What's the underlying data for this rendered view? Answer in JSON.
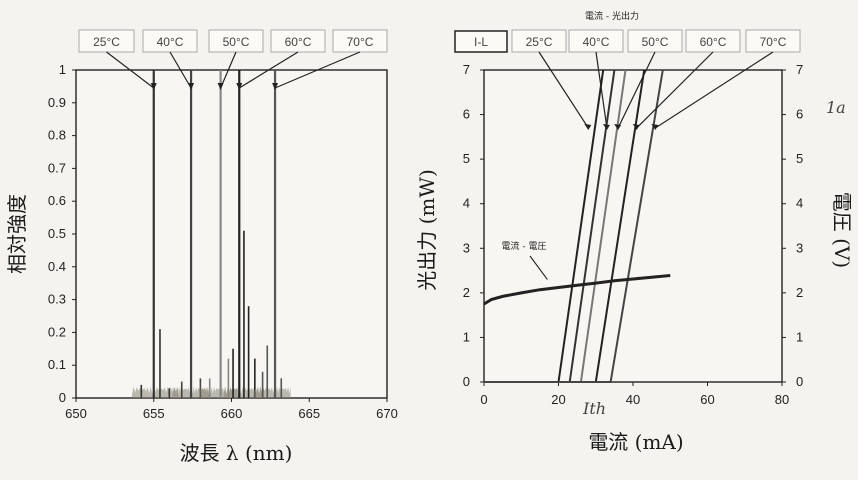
{
  "chart_data": [
    {
      "type": "line",
      "title": "",
      "xlabel": "波長 λ (nm)",
      "ylabel": "相対強度",
      "xlim": [
        650,
        670
      ],
      "ylim": [
        0,
        1
      ],
      "xticks": [
        "650",
        "655",
        "660",
        "665",
        "670"
      ],
      "yticks": [
        "0",
        "0.1",
        "0.2",
        "0.3",
        "0.4",
        "0.5",
        "0.6",
        "0.7",
        "0.8",
        "0.9",
        "1"
      ],
      "legend_position": "top",
      "legend": [
        "25°C",
        "40°C",
        "50°C",
        "60°C",
        "70°C"
      ],
      "series": [
        {
          "name": "25°C",
          "color": "#333333",
          "peaks": [
            [
              654.2,
              0.04
            ],
            [
              655.0,
              1.0
            ],
            [
              655.4,
              0.21
            ],
            [
              656.0,
              0.03
            ]
          ]
        },
        {
          "name": "40°C",
          "color": "#444444",
          "peaks": [
            [
              656.8,
              0.05
            ],
            [
              657.4,
              1.0
            ],
            [
              658.0,
              0.06
            ]
          ]
        },
        {
          "name": "50°C",
          "color": "#888888",
          "peaks": [
            [
              658.6,
              0.06
            ],
            [
              659.3,
              1.0
            ],
            [
              659.8,
              0.12
            ]
          ]
        },
        {
          "name": "60°C",
          "color": "#222222",
          "peaks": [
            [
              660.1,
              0.15
            ],
            [
              660.5,
              1.0
            ],
            [
              660.8,
              0.51
            ],
            [
              661.1,
              0.28
            ],
            [
              661.5,
              0.12
            ]
          ]
        },
        {
          "name": "70°C",
          "color": "#555555",
          "peaks": [
            [
              662.0,
              0.08
            ],
            [
              662.3,
              0.16
            ],
            [
              662.8,
              1.0
            ],
            [
              663.2,
              0.06
            ]
          ]
        }
      ]
    },
    {
      "type": "line",
      "title": "電流 - 光出力",
      "xlabel": "電流 (mA)",
      "ylabel": "光出力 (mW)",
      "y2label": "電圧 (V)",
      "xlim": [
        0,
        80
      ],
      "ylim": [
        0,
        7
      ],
      "y2lim": [
        0,
        7
      ],
      "xticks": [
        "0",
        "20",
        "40",
        "60",
        "80"
      ],
      "yticks": [
        "0",
        "1",
        "2",
        "3",
        "4",
        "5",
        "6",
        "7"
      ],
      "y2ticks": [
        "0",
        "1",
        "2",
        "3",
        "4",
        "5",
        "6",
        "7"
      ],
      "legend_position": "top",
      "legend": [
        "I-L",
        "25°C",
        "40°C",
        "50°C",
        "60°C",
        "70°C"
      ],
      "series": [
        {
          "name": "25°C",
          "color": "#222222",
          "threshold": 20,
          "x": [
            0,
            20,
            32
          ],
          "y": [
            0,
            0,
            7
          ]
        },
        {
          "name": "40°C",
          "color": "#333333",
          "threshold": 23,
          "x": [
            0,
            23,
            35
          ],
          "y": [
            0,
            0,
            7
          ]
        },
        {
          "name": "50°C",
          "color": "#777777",
          "threshold": 26,
          "x": [
            0,
            26,
            38
          ],
          "y": [
            0,
            0,
            7
          ]
        },
        {
          "name": "60°C",
          "color": "#222222",
          "threshold": 30,
          "x": [
            0,
            30,
            43
          ],
          "y": [
            0,
            0,
            7
          ]
        },
        {
          "name": "70°C",
          "color": "#444444",
          "threshold": 34,
          "x": [
            0,
            34,
            48
          ],
          "y": [
            0,
            0,
            7
          ]
        },
        {
          "name": "電流 - 電圧",
          "axis": "right",
          "color": "#222222",
          "x": [
            0,
            2,
            5,
            10,
            15,
            20,
            25,
            30,
            35,
            40,
            45,
            50
          ],
          "y": [
            1.75,
            1.85,
            1.92,
            2.0,
            2.07,
            2.12,
            2.17,
            2.22,
            2.27,
            2.31,
            2.35,
            2.39
          ]
        }
      ],
      "annotations": [
        {
          "text": "電流 - 電圧",
          "target_x": 17,
          "target_y": 2.3
        },
        {
          "text": "1a",
          "kind": "handwritten"
        },
        {
          "text": "Ith",
          "kind": "handwritten"
        }
      ]
    }
  ]
}
